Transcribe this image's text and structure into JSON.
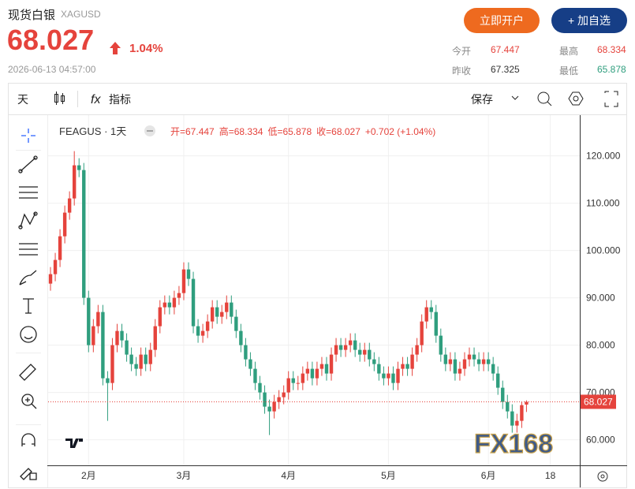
{
  "header": {
    "title": "现货白银",
    "symbol": "XAGUSD",
    "price": "68.027",
    "change": "1.04%",
    "time": "2026-06-13 04:57:00",
    "open_account": "立即开户",
    "add_watch": "+ 加自选",
    "stats": [
      {
        "label": "今开",
        "value": "67.447"
      },
      {
        "label": "最高",
        "value": "68.334"
      },
      {
        "label": "昨收",
        "value": "67.325"
      },
      {
        "label": "最低",
        "value": "65.878"
      }
    ]
  },
  "toolbar": {
    "interval": "天",
    "indicators": "指标",
    "save": "保存"
  },
  "chart_data": {
    "type": "candlestick",
    "symbol_label": "FEAGUS · 1天",
    "ohlc_legend": [
      "开=67.447",
      "高=68.334",
      "低=65.878",
      "收=68.027",
      "+0.702 (+1.04%)"
    ],
    "watermark": "FX168",
    "up_color": "#e5433c",
    "down_color": "#2f9e7e",
    "open": [
      93,
      95,
      98,
      103,
      108,
      111,
      118,
      117,
      90,
      80,
      84,
      87,
      73,
      72,
      80,
      83,
      81,
      78,
      76,
      75,
      78,
      76,
      79,
      84,
      88,
      89,
      88,
      90,
      91,
      96,
      94,
      84,
      82,
      83,
      85,
      88,
      86,
      87,
      89,
      86,
      83,
      80,
      77,
      75,
      72,
      70,
      67,
      66,
      68,
      69,
      70,
      73,
      72,
      72,
      74,
      75,
      73,
      75,
      76,
      74,
      78,
      80,
      79,
      80,
      81,
      79,
      78,
      79,
      77,
      76,
      74,
      73,
      74,
      72,
      75,
      76,
      75,
      78,
      80,
      85,
      88,
      87,
      82,
      78,
      76,
      77,
      74,
      75,
      77,
      78,
      77,
      76,
      77,
      76,
      74,
      71,
      68,
      66,
      63,
      64,
      67.447
    ],
    "high": [
      96.5,
      99.5,
      104.5,
      109.5,
      112.5,
      121,
      119.5,
      118.5,
      91.5,
      85.5,
      88.5,
      88.5,
      74.5,
      81.5,
      84.5,
      84.5,
      82.5,
      79.5,
      77.5,
      79.5,
      79.5,
      80.5,
      85.5,
      89.5,
      90.5,
      90.5,
      91.5,
      92.5,
      97.5,
      97.5,
      95.5,
      85.5,
      84.5,
      86.5,
      89.5,
      89.5,
      88.5,
      90.5,
      90.5,
      87.5,
      84.5,
      81.5,
      78.5,
      76.5,
      73.5,
      71.5,
      68.5,
      69.5,
      70.5,
      71.5,
      74.5,
      74.5,
      73.5,
      75.5,
      76.5,
      76.5,
      76.5,
      77.5,
      77.5,
      79.5,
      81.5,
      81.5,
      81.5,
      82.5,
      82.5,
      80.5,
      80.5,
      80.5,
      78.5,
      77.5,
      75.5,
      75.5,
      75.5,
      76.5,
      77.5,
      77.5,
      79.5,
      81.5,
      86.5,
      89.5,
      89.5,
      88.5,
      83.5,
      79.5,
      78.5,
      78.5,
      76.5,
      78.5,
      79.5,
      79.5,
      78.5,
      78.5,
      78.5,
      77.5,
      75.5,
      72.5,
      69.5,
      67.5,
      65.5,
      68,
      68.334
    ],
    "low": [
      91.5,
      93.5,
      96.5,
      101.5,
      106.5,
      109.5,
      115.5,
      88.5,
      78.5,
      78.5,
      82.5,
      71.5,
      64,
      70.5,
      78.5,
      79.5,
      76.5,
      74.5,
      73.5,
      73.5,
      74.5,
      74.5,
      77.5,
      82.5,
      86.5,
      86.5,
      86.5,
      88.5,
      89.5,
      92.5,
      82.5,
      80.5,
      80.5,
      81.5,
      83.5,
      84.5,
      84.5,
      85.5,
      84.5,
      81.5,
      78.5,
      75.5,
      73.5,
      70.5,
      68.5,
      65.5,
      61,
      64.5,
      66.5,
      67.5,
      68.5,
      70.5,
      70.5,
      70.5,
      72.5,
      71.5,
      71.5,
      73.5,
      72.5,
      72.5,
      76.5,
      77.5,
      77.5,
      78.5,
      77.5,
      76.5,
      76.5,
      75.5,
      74.5,
      72.5,
      71.5,
      71.5,
      70.5,
      70.5,
      73.5,
      73.5,
      73.5,
      76.5,
      78.5,
      83.5,
      85.5,
      80.5,
      76.5,
      74.5,
      74.5,
      72.5,
      72.5,
      73.5,
      75.5,
      75.5,
      74.5,
      74.5,
      74.5,
      72.5,
      69.5,
      66.5,
      64.5,
      61.5,
      61.5,
      62.5,
      65.878
    ],
    "close": [
      95,
      98,
      103,
      108,
      111,
      118,
      117,
      90,
      80,
      84,
      87,
      73,
      72,
      80,
      83,
      81,
      78,
      76,
      75,
      78,
      76,
      79,
      84,
      88,
      89,
      88,
      90,
      91,
      96,
      94,
      84,
      82,
      83,
      85,
      88,
      86,
      87,
      89,
      86,
      83,
      80,
      77,
      75,
      72,
      70,
      67,
      66,
      68,
      69,
      70,
      73,
      72,
      72,
      74,
      75,
      73,
      75,
      76,
      74,
      78,
      80,
      79,
      80,
      81,
      79,
      78,
      79,
      77,
      76,
      74,
      73,
      74,
      72,
      75,
      76,
      75,
      78,
      80,
      85,
      88,
      87,
      82,
      78,
      76,
      77,
      74,
      75,
      77,
      78,
      77,
      76,
      77,
      76,
      74,
      71,
      68,
      66,
      63,
      64,
      67.325,
      68.027
    ],
    "ylim": [
      54.6,
      128.6
    ],
    "yticks": [
      {
        "value": 60,
        "label": "60.000"
      },
      {
        "value": 70,
        "label": "70.000"
      },
      {
        "value": 80,
        "label": "80.000"
      },
      {
        "value": 90,
        "label": "90.000"
      },
      {
        "value": 100,
        "label": "100.000"
      },
      {
        "value": 110,
        "label": "110.000"
      },
      {
        "value": 120,
        "label": "120.000"
      }
    ],
    "xlim": [
      -0.5,
      111.2
    ],
    "xticks": [
      {
        "value": 8,
        "label": "2月"
      },
      {
        "value": 28,
        "label": "3月"
      },
      {
        "value": 50,
        "label": "4月"
      },
      {
        "value": 71,
        "label": "5月"
      },
      {
        "value": 92,
        "label": "6月"
      },
      {
        "value": 105,
        "label": "18"
      }
    ],
    "grid": true
  }
}
